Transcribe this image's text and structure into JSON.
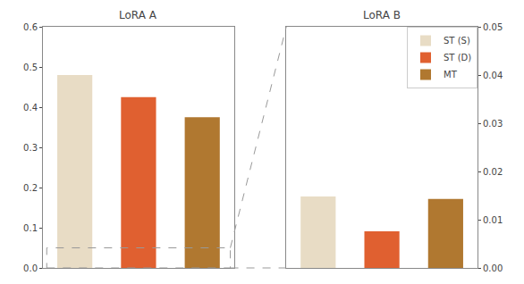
{
  "chart_data": [
    {
      "type": "bar",
      "title": "LoRA A",
      "categories": [
        "ST (S)",
        "ST (D)",
        "MT"
      ],
      "values": [
        0.48,
        0.425,
        0.375
      ],
      "colors": [
        "#e8dcc5",
        "#e06030",
        "#b07830"
      ],
      "ylim": [
        0.0,
        0.6
      ],
      "yticks": [
        {
          "value": 0.0,
          "label": "0.0"
        },
        0.1,
        0.2,
        0.3,
        0.4,
        0.5,
        0.6
      ],
      "grid": false,
      "tick_labels": "y"
    },
    {
      "type": "bar",
      "title": "LoRA B",
      "categories": [
        "ST (S)",
        "ST (D)",
        "MT"
      ],
      "values": [
        0.0148,
        0.0076,
        0.0143
      ],
      "colors": [
        "#e8dcc5",
        "#e06030",
        "#b07830"
      ],
      "ylim": [
        0.0,
        0.05
      ],
      "yticks": [
        {
          "value": 0.0,
          "label": "0.00"
        },
        {
          "value": 0.01,
          "label": "0.01"
        },
        {
          "value": 0.02,
          "label": "0.02"
        },
        {
          "value": 0.03,
          "label": "0.03"
        },
        {
          "value": 0.04,
          "label": "0.04"
        },
        {
          "value": 0.05,
          "label": "0.05"
        }
      ],
      "grid": false,
      "tick_labels": "y",
      "legend": "upper right"
    }
  ]
}
